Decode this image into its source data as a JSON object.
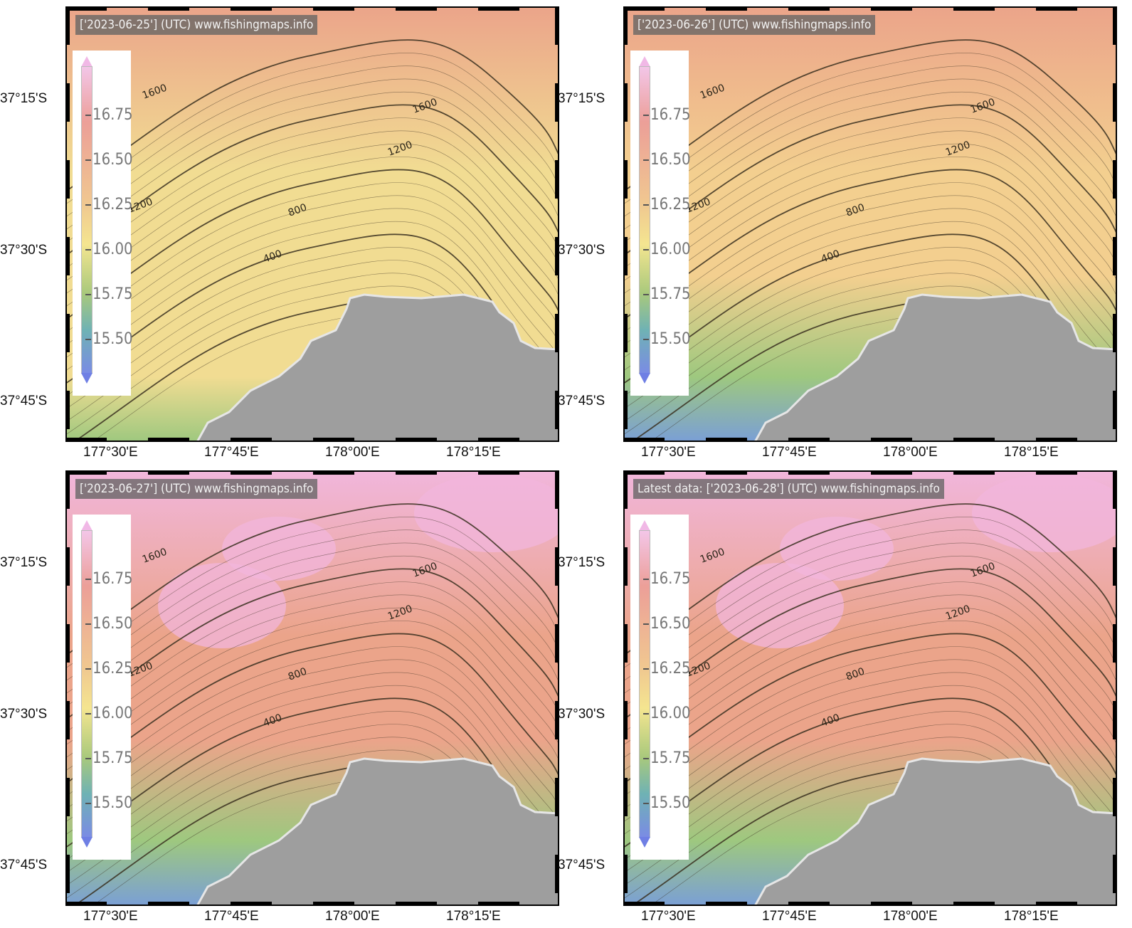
{
  "panels": [
    {
      "label": "['2023-06-25'] (UTC)  www.fishingmaps.info"
    },
    {
      "label": "['2023-06-26'] (UTC)  www.fishingmaps.info"
    },
    {
      "label": "['2023-06-27'] (UTC)  www.fishingmaps.info"
    },
    {
      "label": "Latest data: ['2023-06-28'] (UTC)  www.fishingmaps.info"
    }
  ],
  "legend": {
    "ticks": [
      "16.75",
      "16.50",
      "16.25",
      "16.00",
      "15.75",
      "15.50"
    ]
  },
  "axes": {
    "lat_labels": [
      "37°15'S",
      "37°30'S",
      "37°45'S"
    ],
    "lon_labels": [
      "177°30'E",
      "177°45'E",
      "178°00'E",
      "178°15'E"
    ]
  },
  "contours": {
    "labels": [
      "1600",
      "1600",
      "1200",
      "1200",
      "800",
      "400"
    ]
  },
  "colors": {
    "land": "#9e9e9e",
    "warm": "#eba48a",
    "mid": "#f1dc92",
    "cool": "#9ec87f",
    "cold": "#7a9fd6",
    "pink": "#f1b6dc"
  }
}
